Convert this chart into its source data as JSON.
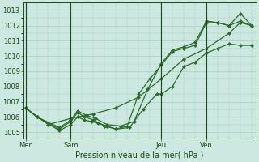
{
  "background_color": "#cce8e0",
  "grid_color": "#a8cfc4",
  "line_color": "#2d6a2d",
  "axis_color": "#1a4a1a",
  "xlabel": "Pression niveau de la mer( hPa )",
  "yticks": [
    1005,
    1006,
    1007,
    1008,
    1009,
    1010,
    1011,
    1012,
    1013
  ],
  "ylim": [
    1004.6,
    1013.5
  ],
  "day_labels": [
    "Mer",
    "Sam",
    "Jeu",
    "Ven"
  ],
  "day_positions": [
    0,
    2,
    6,
    8
  ],
  "xlim": [
    -0.1,
    10.2
  ],
  "line1_x": [
    0,
    0.5,
    1.5,
    2.0,
    2.3,
    2.6,
    2.9,
    3.2,
    3.6,
    4.0,
    4.6,
    5.2,
    5.8,
    6.0,
    6.5,
    7.0,
    7.5,
    8.0,
    8.5,
    9.0,
    9.5,
    10.0
  ],
  "line1_y": [
    1006.6,
    1006.0,
    1005.1,
    1005.5,
    1006.0,
    1005.8,
    1005.7,
    1005.6,
    1005.4,
    1005.2,
    1005.3,
    1006.5,
    1007.5,
    1007.5,
    1008.0,
    1009.3,
    1009.6,
    1010.2,
    1010.5,
    1010.8,
    1010.7,
    1010.7
  ],
  "line2_x": [
    0,
    0.5,
    1.5,
    2.0,
    2.3,
    2.6,
    3.0,
    3.5,
    4.0,
    4.5,
    5.0,
    5.5,
    6.0,
    6.5,
    7.0,
    7.5,
    8.0,
    8.5,
    9.0,
    9.5,
    10.0
  ],
  "line2_y": [
    1006.6,
    1006.0,
    1005.2,
    1005.7,
    1006.3,
    1006.0,
    1005.8,
    1005.4,
    1005.2,
    1005.4,
    1007.5,
    1008.5,
    1009.4,
    1010.3,
    1010.5,
    1010.7,
    1012.2,
    1012.2,
    1012.0,
    1012.3,
    1012.0
  ],
  "line3_x": [
    0,
    0.5,
    1.5,
    2.0,
    2.3,
    2.7,
    3.1,
    3.6,
    4.2,
    4.8,
    5.4,
    6.0,
    6.5,
    7.0,
    7.5,
    8.0,
    8.5,
    9.0,
    9.5,
    10.0
  ],
  "line3_y": [
    1006.6,
    1006.0,
    1005.3,
    1005.8,
    1006.4,
    1006.1,
    1005.9,
    1005.5,
    1005.4,
    1005.7,
    1007.8,
    1009.5,
    1010.4,
    1010.6,
    1010.9,
    1012.3,
    1012.2,
    1012.0,
    1012.8,
    1012.0
  ],
  "line4_x": [
    0,
    1.0,
    2.0,
    3.0,
    4.0,
    5.0,
    6.0,
    7.0,
    8.0,
    9.0,
    9.5,
    10.0
  ],
  "line4_y": [
    1006.6,
    1005.5,
    1005.9,
    1006.2,
    1006.6,
    1007.3,
    1008.5,
    1009.8,
    1010.5,
    1011.5,
    1012.2,
    1012.0
  ],
  "vline_x": [
    0,
    2,
    6,
    8
  ],
  "title_fontsize": 7,
  "tick_fontsize": 6
}
